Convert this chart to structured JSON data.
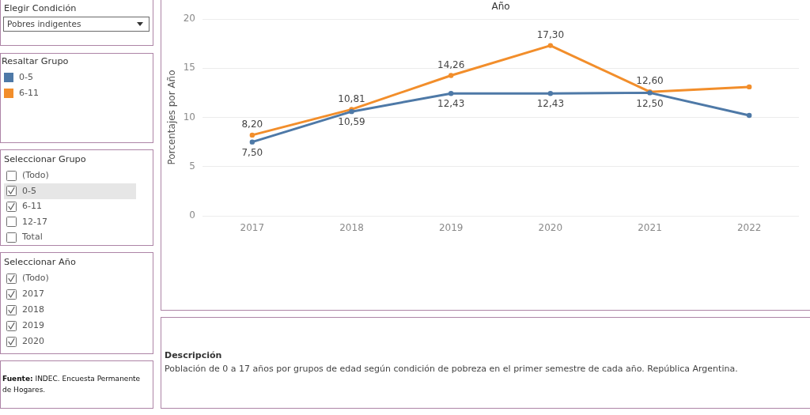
{
  "chart_data": {
    "type": "line",
    "xlabel": "Año",
    "ylabel": "Porcentajes por Año",
    "legend_title": "Resaltar Grupo",
    "categories": [
      "2017",
      "2018",
      "2019",
      "2020",
      "2021",
      "2022"
    ],
    "series": [
      {
        "name": "0-5",
        "color": "#4e79a7",
        "values": [
          7.5,
          10.59,
          12.43,
          12.43,
          12.5,
          10.2
        ],
        "value_labels": [
          "7,50",
          "10,59",
          "12,43",
          "12,43",
          "12,50",
          null
        ]
      },
      {
        "name": "6-11",
        "color": "#f28e2b",
        "values": [
          8.2,
          10.81,
          14.26,
          17.3,
          12.6,
          13.1
        ],
        "value_labels": [
          "8,20",
          "10,81",
          "14,26",
          "17,30",
          "12,60",
          null
        ]
      }
    ],
    "ylim": [
      0,
      20
    ],
    "yticks": [
      0,
      5,
      10,
      15,
      20
    ],
    "grid": "y",
    "legend": "left",
    "marker": "circle",
    "line_style": "solid",
    "annotations": [
      "Elegir Condición",
      "Pobres indigentes",
      "Seleccionar Grupo",
      "(Todo)",
      "0-5",
      "6-11",
      "12-17",
      "Total",
      "Seleccionar Año",
      "(Todo)",
      "2017",
      "2018",
      "2019",
      "2020",
      "Fuente: INDEC. Encuesta Permanente de Hogares.",
      "Descripción",
      "Población de 0 a 17 años por grupos de edad según condición de pobreza en el primer semestre de cada año. República Argentina."
    ]
  }
}
